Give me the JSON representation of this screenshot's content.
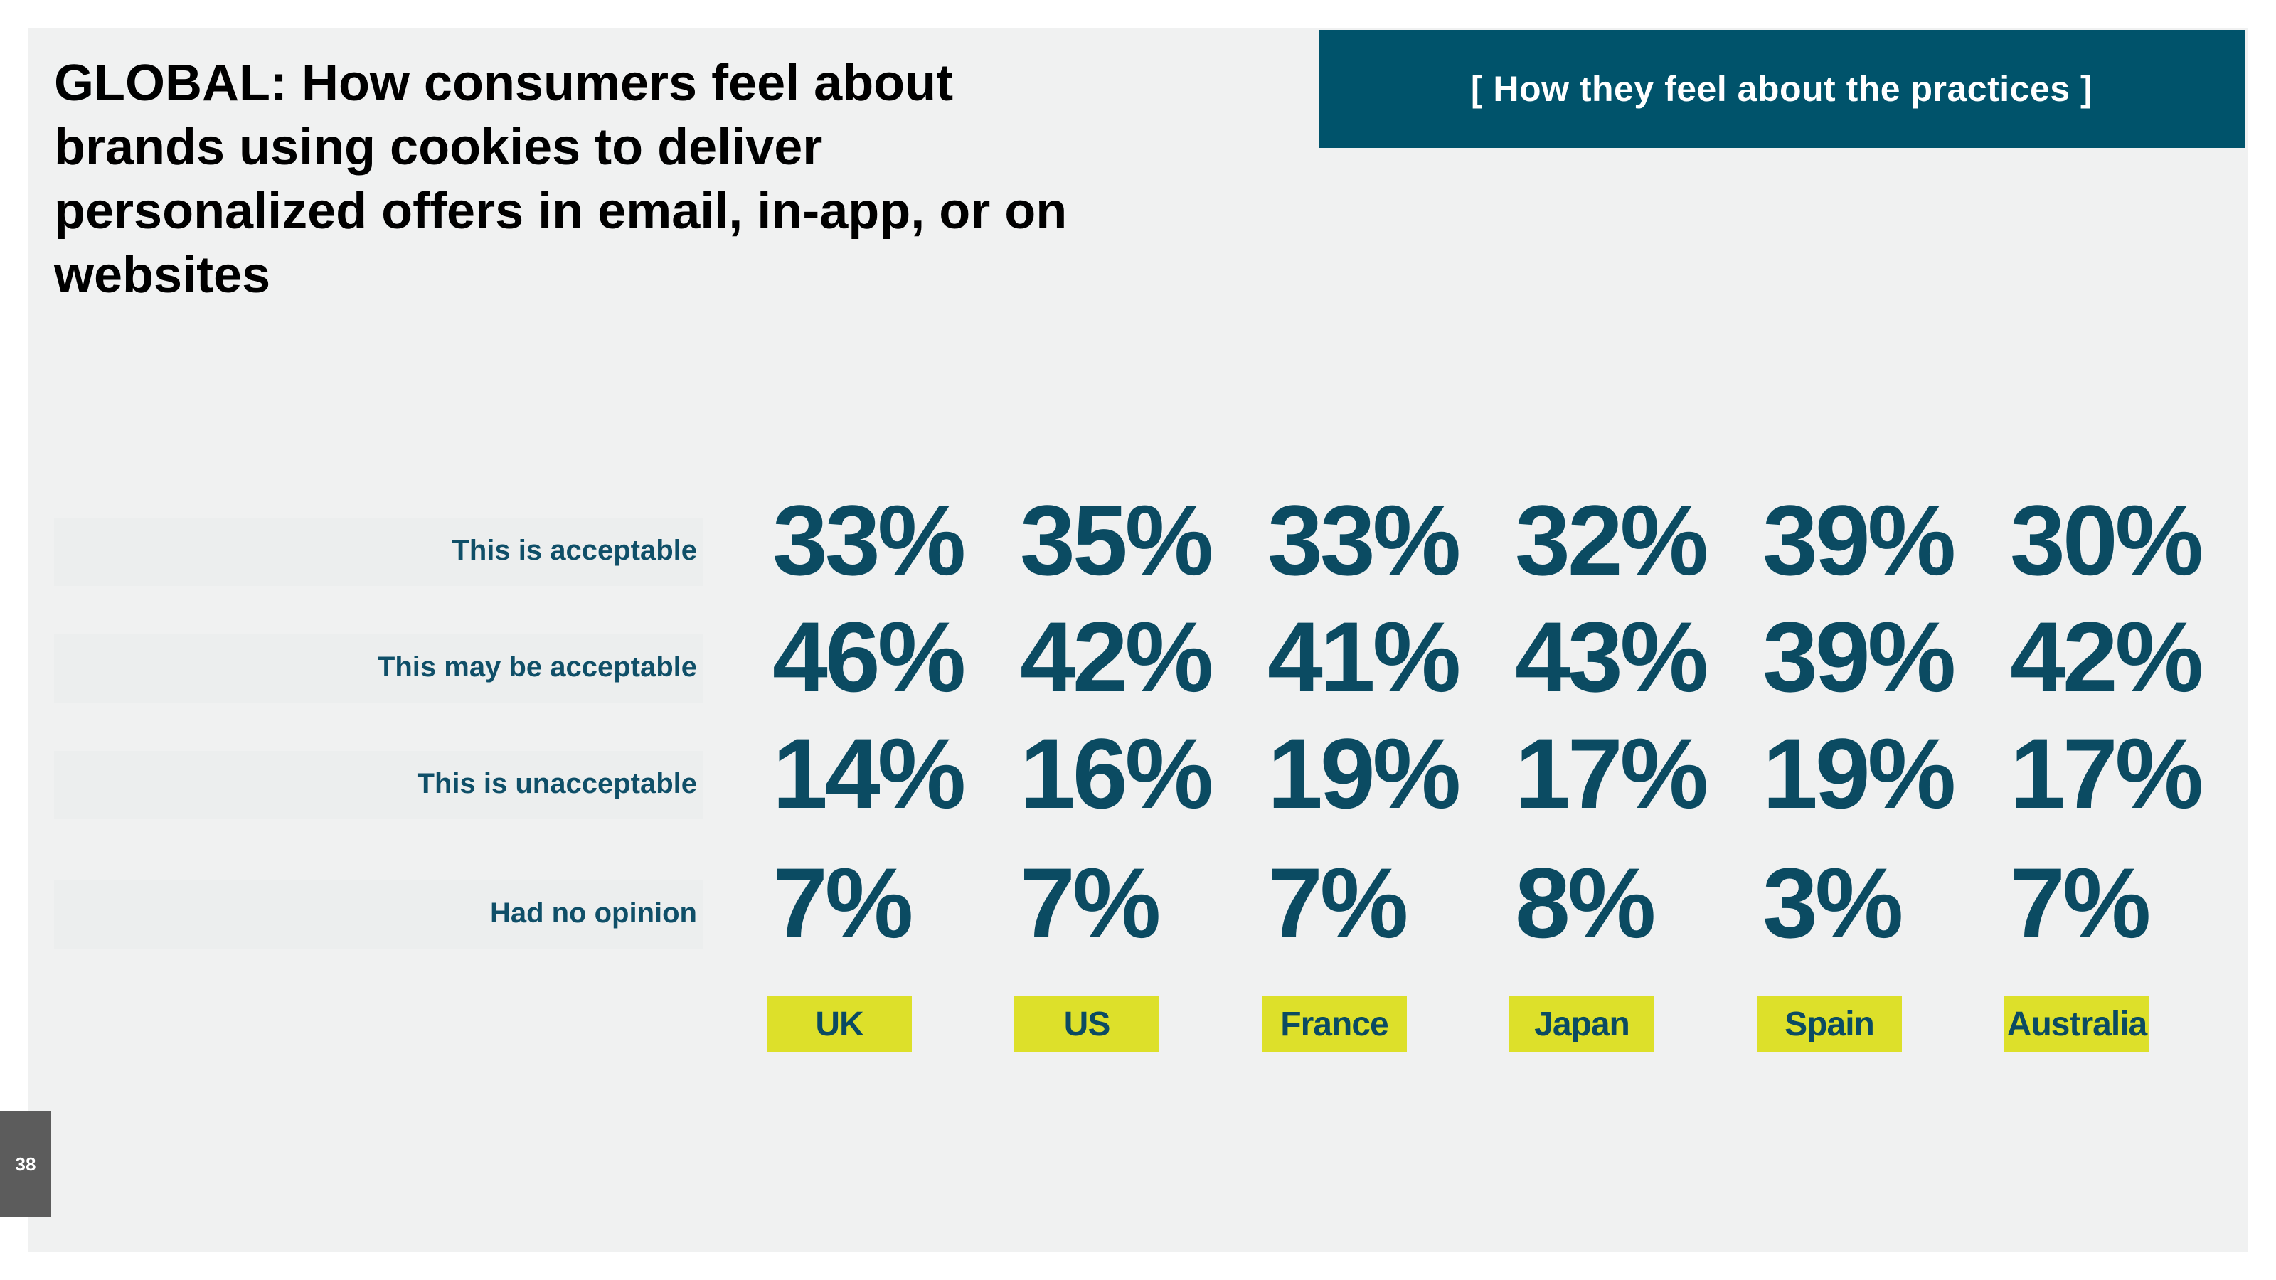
{
  "title": "GLOBAL: How consumers feel about brands using cookies to deliver personalized offers in email, in-app, or on websites",
  "banner": "[ How they feel about the practices ]",
  "page_number": "38",
  "rows": [
    {
      "label": "This is acceptable"
    },
    {
      "label": "This may be acceptable"
    },
    {
      "label": "This is unacceptable"
    },
    {
      "label": "Had no opinion"
    }
  ],
  "countries": [
    "UK",
    "US",
    "France",
    "Japan",
    "Spain",
    "Australia"
  ],
  "values": [
    [
      "33%",
      "35%",
      "33%",
      "32%",
      "39%",
      "30%"
    ],
    [
      "46%",
      "42%",
      "41%",
      "43%",
      "39%",
      "42%"
    ],
    [
      "14%",
      "16%",
      "19%",
      "17%",
      "19%",
      "17%"
    ],
    [
      "7%",
      "7%",
      "7%",
      "8%",
      "3%",
      "7%"
    ]
  ],
  "chart_data": {
    "type": "table",
    "title": "GLOBAL: How consumers feel about brands using cookies to deliver personalized offers in email, in-app, or on websites",
    "categories": [
      "UK",
      "US",
      "France",
      "Japan",
      "Spain",
      "Australia"
    ],
    "series": [
      {
        "name": "This is acceptable",
        "values": [
          33,
          35,
          33,
          32,
          39,
          30
        ]
      },
      {
        "name": "This may be acceptable",
        "values": [
          46,
          42,
          41,
          43,
          39,
          42
        ]
      },
      {
        "name": "This is unacceptable",
        "values": [
          14,
          16,
          19,
          17,
          19,
          17
        ]
      },
      {
        "name": "Had no opinion",
        "values": [
          7,
          7,
          7,
          8,
          3,
          7
        ]
      }
    ],
    "unit": "%"
  },
  "colors": {
    "banner": "#00536b",
    "value_text": "#0b4b62",
    "country_tag": "#dde02a",
    "background": "#f0f1f1"
  }
}
